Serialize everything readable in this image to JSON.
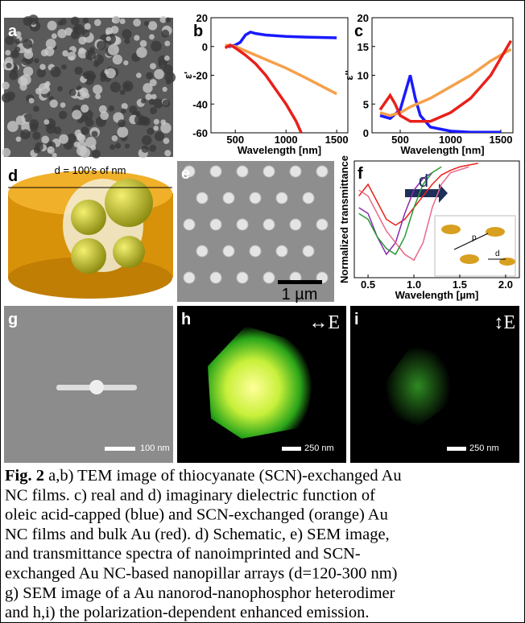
{
  "chart_data": [
    {
      "type": "line",
      "y_label": "ε'",
      "x_label": "Wavelength [nm]",
      "xlim": [
        260,
        1610
      ],
      "ylim": [
        -60,
        20
      ],
      "xticks": [
        500,
        1000,
        1500
      ],
      "yticks": [
        20,
        0,
        -20,
        -40,
        -60
      ],
      "series": [
        {
          "color": "#1a1aff",
          "x": [
            400,
            450,
            500,
            550,
            600,
            650,
            700,
            800,
            1000,
            1200,
            1500
          ],
          "values": [
            0,
            0,
            1,
            3,
            8,
            10,
            9,
            8,
            7,
            6.5,
            6
          ]
        },
        {
          "color": "#f5a04a",
          "x": [
            400,
            500,
            600,
            700,
            800,
            1000,
            1200,
            1500
          ],
          "values": [
            1,
            0,
            -3,
            -6,
            -9,
            -15,
            -22,
            -33
          ]
        },
        {
          "color": "#e8201a",
          "x": [
            400,
            450,
            500,
            600,
            700,
            800,
            900,
            1000,
            1100,
            1150
          ],
          "values": [
            -1,
            1,
            -1,
            -6,
            -12,
            -20,
            -30,
            -40,
            -52,
            -60
          ]
        }
      ]
    },
    {
      "type": "line",
      "y_label": "ε''",
      "x_label": "Wavelength [nm]",
      "xlim": [
        220,
        1620
      ],
      "ylim": [
        0,
        20
      ],
      "xticks": [
        500,
        1000,
        1500
      ],
      "yticks": [
        20,
        15,
        10,
        5,
        0
      ],
      "series": [
        {
          "color": "#1a1aff",
          "x": [
            300,
            400,
            500,
            550,
            600,
            650,
            700,
            800,
            1000,
            1200,
            1500
          ],
          "values": [
            3,
            2.5,
            4,
            7,
            10,
            6,
            3,
            1,
            0.3,
            0.1,
            0.1
          ]
        },
        {
          "color": "#f5a04a",
          "x": [
            300,
            400,
            500,
            600,
            800,
            1000,
            1200,
            1400,
            1600
          ],
          "values": [
            3.5,
            3,
            3.5,
            4.5,
            6,
            8,
            10,
            12.5,
            14.5
          ]
        },
        {
          "color": "#e8201a",
          "x": [
            300,
            400,
            450,
            500,
            600,
            800,
            1000,
            1200,
            1400,
            1600
          ],
          "values": [
            4,
            6.5,
            5,
            3,
            2,
            2,
            3.5,
            6,
            10,
            16
          ]
        }
      ]
    },
    {
      "type": "line",
      "y_label": "Normalized transmittance",
      "x_label": "Wavelength [µm]",
      "xlim": [
        0.35,
        2.15
      ],
      "ylim": [
        0,
        1
      ],
      "xticks": [
        0.5,
        {
          "value": 1.0,
          "label": "1.0"
        },
        1.5,
        {
          "value": 2.0,
          "label": "2.0"
        }
      ],
      "yticks": [],
      "series": [
        {
          "color": "#e8201a",
          "x": [
            0.4,
            0.5,
            0.6,
            0.7,
            0.8,
            0.9,
            1.0,
            1.1,
            1.2,
            1.3,
            1.4,
            1.5,
            1.7
          ],
          "values": [
            0.7,
            0.8,
            0.65,
            0.5,
            0.45,
            0.5,
            0.6,
            0.7,
            0.8,
            0.88,
            0.92,
            0.95,
            0.98
          ]
        },
        {
          "color": "#8a2ab0",
          "x": [
            0.4,
            0.5,
            0.6,
            0.7,
            0.8,
            0.9,
            1.0,
            1.1,
            1.2
          ],
          "values": [
            0.6,
            0.55,
            0.35,
            0.2,
            0.3,
            0.55,
            0.75,
            0.85,
            0.9
          ]
        },
        {
          "color": "#e86a8a",
          "x": [
            0.4,
            0.5,
            0.6,
            0.7,
            0.8,
            0.9,
            1.0,
            1.1,
            1.2,
            1.3,
            1.4,
            1.6
          ],
          "values": [
            0.75,
            0.7,
            0.55,
            0.4,
            0.3,
            0.2,
            0.15,
            0.3,
            0.6,
            0.8,
            0.9,
            0.95
          ]
        },
        {
          "color": "#2a9a3a",
          "x": [
            0.4,
            0.5,
            0.6,
            0.7,
            0.8,
            0.9,
            1.0,
            1.1,
            1.2,
            1.3
          ],
          "values": [
            0.55,
            0.5,
            0.35,
            0.25,
            0.2,
            0.35,
            0.6,
            0.8,
            0.9,
            0.95
          ]
        }
      ]
    }
  ],
  "figure": {
    "panel_labels": [
      "a",
      "b",
      "c",
      "d",
      "e",
      "f",
      "g",
      "h",
      "i"
    ],
    "schematic_label": "d = 100's of nm",
    "arrow_label": "d",
    "inset_labels": [
      "p",
      "d"
    ],
    "scale_bars": [
      "1 µm",
      "100 nm",
      "250 nm",
      "250 nm"
    ],
    "polarization_labels": [
      "↔E",
      "↕E"
    ]
  },
  "caption": {
    "label": "Fig. 2",
    "lines": [
      " a,b) TEM image of thiocyanate (SCN)-exchanged Au",
      "NC films. c) real and d) imaginary dielectric function of",
      "oleic acid-capped (blue) and SCN-exchanged (orange) Au",
      "NC films and bulk Au (red). d) Schematic, e) SEM image,",
      "and transmittance spectra of nanoimprinted and SCN-",
      "exchanged Au NC-based nanopillar arrays (d=120-300 nm)",
      "g)  SEM image of a Au nanorod-nanophosphor heterodimer",
      "and h,i) the polarization-dependent enhanced emission."
    ]
  }
}
